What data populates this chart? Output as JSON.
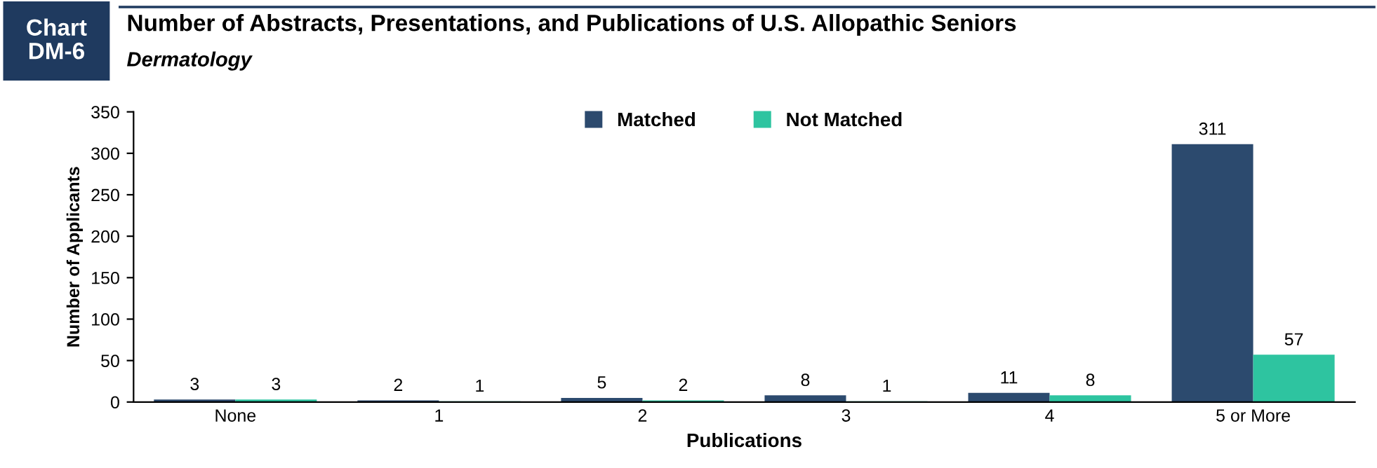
{
  "chart_data": {
    "type": "bar",
    "title": "Number of Abstracts, Presentations, and Publications of U.S. Allopathic Seniors",
    "subtitle": "Dermatology",
    "annotations": [
      "Chart DM-6"
    ],
    "xlabel": "Publications",
    "ylabel": "Number of Applicants",
    "categories": [
      "None",
      "1",
      "2",
      "3",
      "4",
      "5 or More"
    ],
    "series": [
      {
        "name": "Matched",
        "color": "#2c4a6e",
        "values": [
          3,
          2,
          5,
          8,
          11,
          311
        ]
      },
      {
        "name": "Not Matched",
        "color": "#2ec4a0",
        "values": [
          3,
          1,
          2,
          1,
          8,
          57
        ]
      }
    ],
    "ylim": [
      0,
      350
    ],
    "yticks": [
      0,
      50,
      100,
      150,
      200,
      250,
      300,
      350
    ],
    "grid": false,
    "legend": "top",
    "data_labels": true
  }
}
